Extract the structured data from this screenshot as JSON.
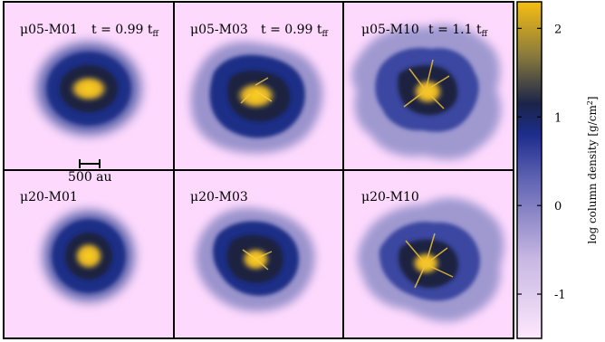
{
  "panels": [
    {
      "label": "μ05-M01",
      "time_prefix": "t = 0.99 t",
      "time_sub": "ff",
      "scale_bar": "500 au",
      "blob_shape": "smooth-oval"
    },
    {
      "label": "μ05-M03",
      "time_prefix": "t = 0.99 t",
      "time_sub": "ff",
      "blob_shape": "lumpy"
    },
    {
      "label": "μ05-M10",
      "time_prefix": "t = 1.1 t",
      "time_sub": "ff",
      "blob_shape": "very-lumpy-filamentary"
    },
    {
      "label": "μ20-M01",
      "blob_shape": "smooth-round"
    },
    {
      "label": "μ20-M03",
      "blob_shape": "lumpy"
    },
    {
      "label": "μ20-M10",
      "blob_shape": "very-lumpy-filamentary"
    }
  ],
  "colorbar": {
    "title_main": "log column density [g/cm",
    "title_sup": "2",
    "title_end": "]",
    "ticks": [
      {
        "value": 2,
        "label": "2"
      },
      {
        "value": 1,
        "label": "1"
      },
      {
        "value": 0,
        "label": "0"
      },
      {
        "value": -1,
        "label": "-1"
      }
    ],
    "range": [
      -1.5,
      2.3
    ],
    "stops": [
      {
        "value": -1.5,
        "color": "#fde8fd"
      },
      {
        "value": -0.6,
        "color": "#c7b7e2"
      },
      {
        "value": 0.3,
        "color": "#5f63b3"
      },
      {
        "value": 0.8,
        "color": "#1d2d8c"
      },
      {
        "value": 1.15,
        "color": "#1a2448"
      },
      {
        "value": 1.7,
        "color": "#8a7b3c"
      },
      {
        "value": 2.3,
        "color": "#f7be12"
      }
    ]
  },
  "colors": {
    "background": "#fdd9fd",
    "frame": "#000000"
  }
}
